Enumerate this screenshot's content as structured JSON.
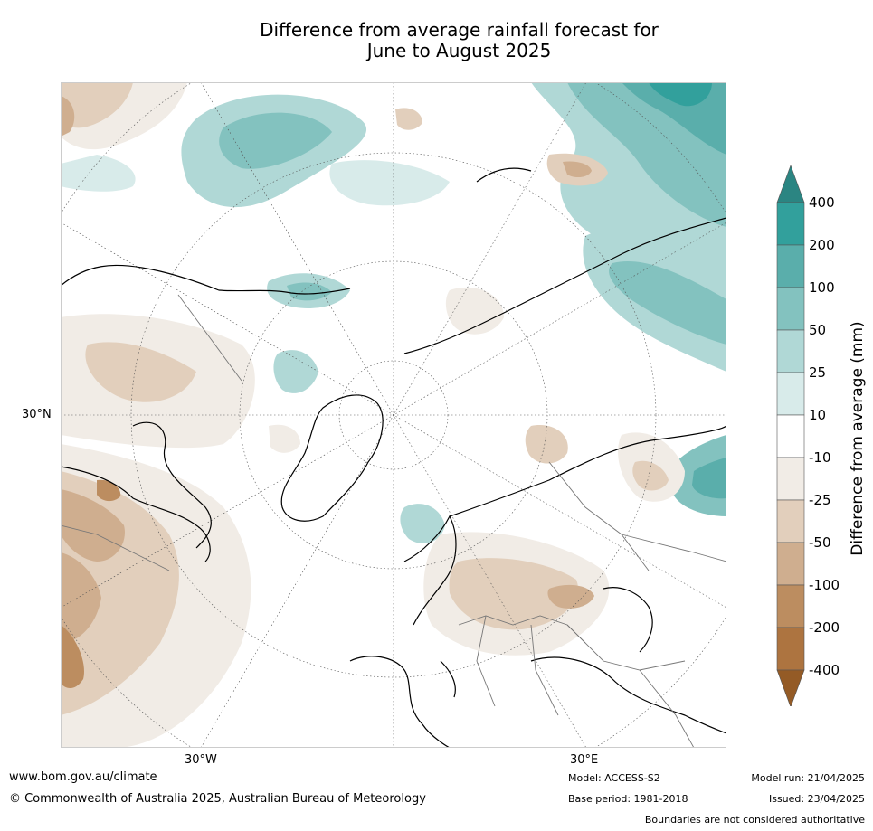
{
  "title": {
    "line1": "Difference from average rainfall forecast for",
    "line2": "June to August 2025"
  },
  "map": {
    "projection": "north-polar-stereographic",
    "graticule_labels": {
      "lat_30n": "30°N",
      "lon_30w": "30°W",
      "lon_30e": "30°E"
    }
  },
  "colorbar": {
    "title": "Difference from average (mm)",
    "tick_labels": [
      "400",
      "200",
      "100",
      "50",
      "25",
      "10",
      "-10",
      "-25",
      "-50",
      "-100",
      "-200",
      "-400"
    ],
    "colors_top_to_bottom": [
      "#2b8582",
      "#32a09c",
      "#5aaeab",
      "#83c2bf",
      "#b0d8d6",
      "#d8ebea",
      "#ffffff",
      "#f1ece6",
      "#e2cfbc",
      "#cfae8f",
      "#bc8d60",
      "#ad7440",
      "#945b26"
    ],
    "extend": "both"
  },
  "footer": {
    "website": "www.bom.gov.au/climate",
    "copyright": "© Commonwealth of Australia 2025, Australian Bureau of Meteorology",
    "model": "Model: ACCESS-S2",
    "base_period": "Base period: 1981-2018",
    "model_run": "Model run: 21/04/2025",
    "issued": "Issued: 23/04/2025",
    "disclaimer": "Boundaries are not considered authoritative"
  }
}
